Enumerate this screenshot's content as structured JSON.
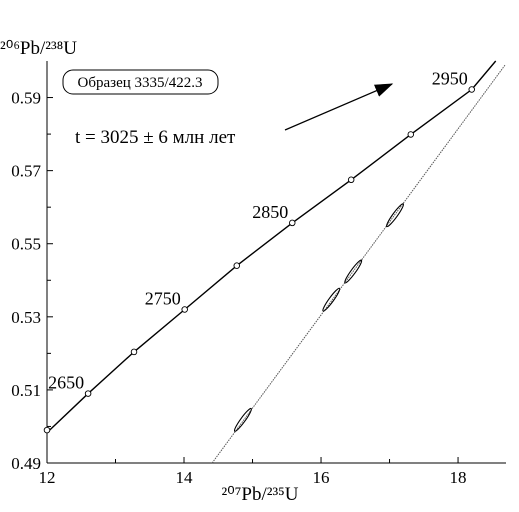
{
  "chart_data": {
    "type": "concordia",
    "y_label": "²⁰⁶Pb/²³⁸U",
    "x_label": "²⁰⁷Pb/²³⁵U",
    "sample_label": "Образец 3335/422.3",
    "age_annotation": "t = 3025 ± 6 млн лет",
    "xlim": [
      12,
      18.7
    ],
    "ylim": [
      0.49,
      0.6
    ],
    "xticks": [
      12,
      14,
      16,
      18
    ],
    "xminor": [
      13,
      15,
      17
    ],
    "yticks": [
      0.49,
      0.51,
      0.53,
      0.55,
      0.57,
      0.59
    ],
    "yminor": [
      0.5,
      0.52,
      0.54,
      0.56,
      0.58
    ],
    "series": [
      {
        "name": "concordia",
        "kind": "line",
        "color": "#000",
        "x": [
          12,
          12.6,
          13.27,
          14.01,
          14.77,
          15.58,
          16.44,
          17.31,
          18.2,
          18.55
        ],
        "y": [
          0.4983,
          0.509,
          0.5204,
          0.532,
          0.544,
          0.5557,
          0.5675,
          0.5799,
          0.5922,
          0.6
        ]
      },
      {
        "name": "age-points",
        "kind": "points",
        "color": "#000",
        "x": [
          12,
          12.6,
          13.27,
          14.01,
          14.77,
          15.58,
          16.44,
          17.31,
          18.2
        ],
        "y": [
          0.499,
          0.509,
          0.5204,
          0.532,
          0.544,
          0.5557,
          0.5675,
          0.5799,
          0.5922
        ],
        "labels": [
          null,
          "2650",
          null,
          "2750",
          null,
          "2850",
          null,
          null,
          "2950"
        ]
      },
      {
        "name": "discordia",
        "kind": "dotted",
        "color": "#555",
        "x": [
          14.41,
          18.69
        ],
        "y": [
          0.49,
          0.599
        ]
      },
      {
        "name": "analyses",
        "kind": "ellipses",
        "color": "#000",
        "x": [
          14.86,
          16.15,
          16.47,
          17.08
        ],
        "y": [
          0.5018,
          0.5347,
          0.5424,
          0.5578
        ]
      }
    ]
  }
}
